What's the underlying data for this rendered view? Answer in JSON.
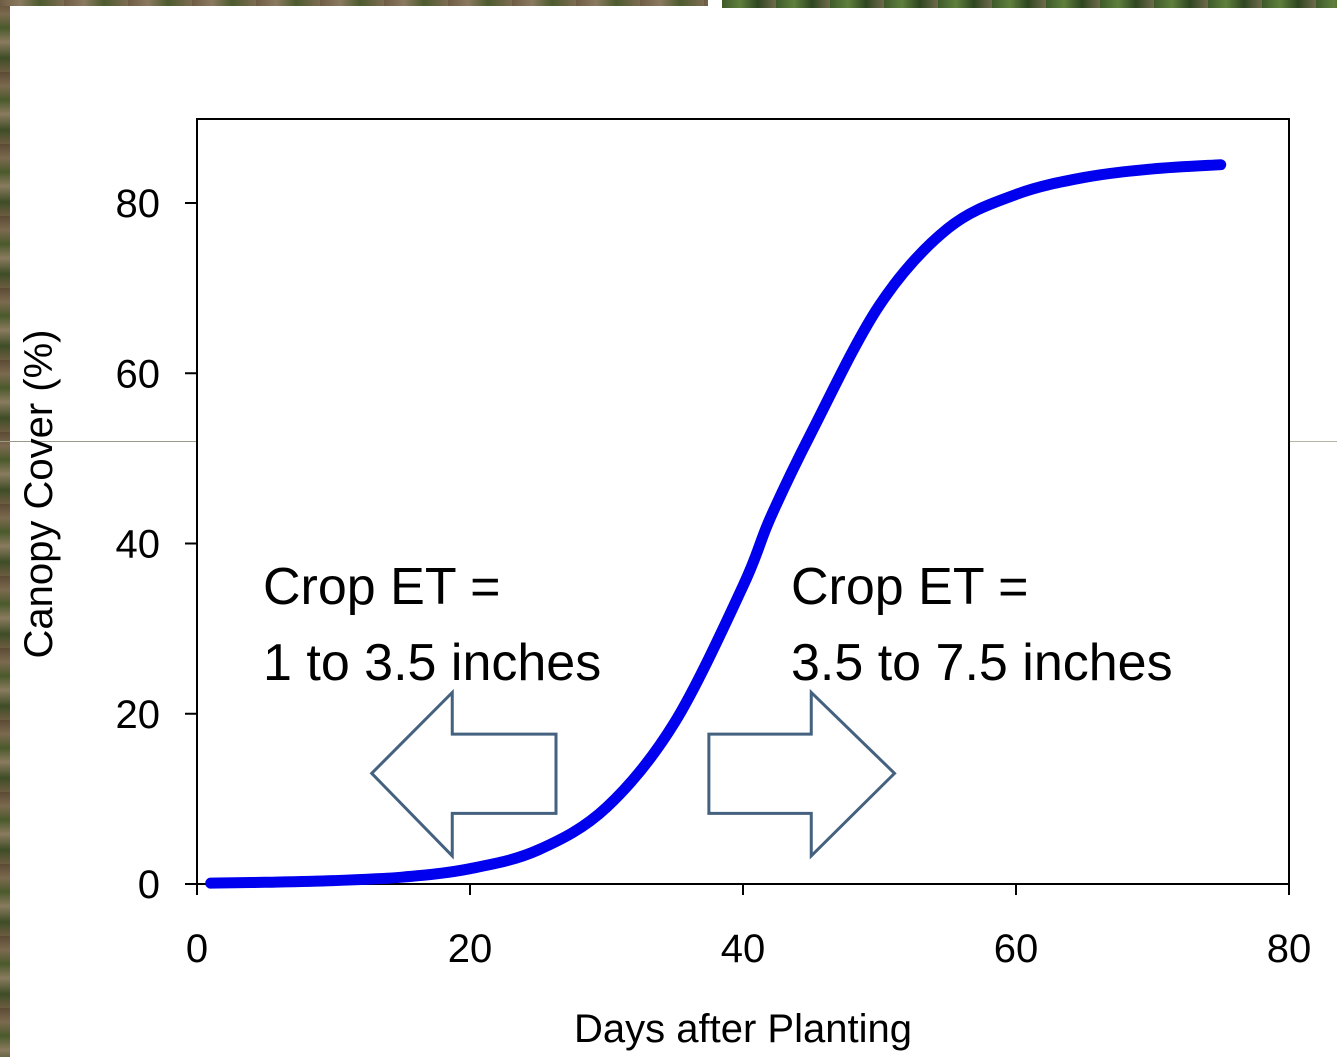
{
  "chart_data": {
    "type": "line",
    "xlabel": "Days after Planting",
    "ylabel": "Canopy Cover (%)",
    "xlim": [
      0,
      80
    ],
    "ylim": [
      0,
      90
    ],
    "xticks": [
      0,
      20,
      40,
      60,
      80
    ],
    "yticks": [
      0,
      20,
      40,
      60,
      80
    ],
    "grid": false,
    "series": [
      {
        "color": "#0000ee",
        "x": [
          1,
          5,
          10,
          15,
          20,
          25,
          30,
          35,
          40,
          42,
          45,
          50,
          55,
          60,
          65,
          70,
          75
        ],
        "y": [
          0.1,
          0.2,
          0.4,
          0.8,
          1.8,
          4,
          9,
          19,
          35,
          43,
          53,
          68,
          77,
          81,
          83,
          84,
          84.5
        ]
      }
    ],
    "annotations": [
      {
        "line1": "Crop ET =",
        "line2": "1 to 3.5 inches",
        "arrow": "left"
      },
      {
        "line1": "Crop ET =",
        "line2": "3.5 to 7.5 inches",
        "arrow": "right"
      }
    ],
    "colors": {
      "line": "#0000ee",
      "arrow_stroke": "#44617f",
      "arrow_fill": "#ffffff"
    }
  }
}
